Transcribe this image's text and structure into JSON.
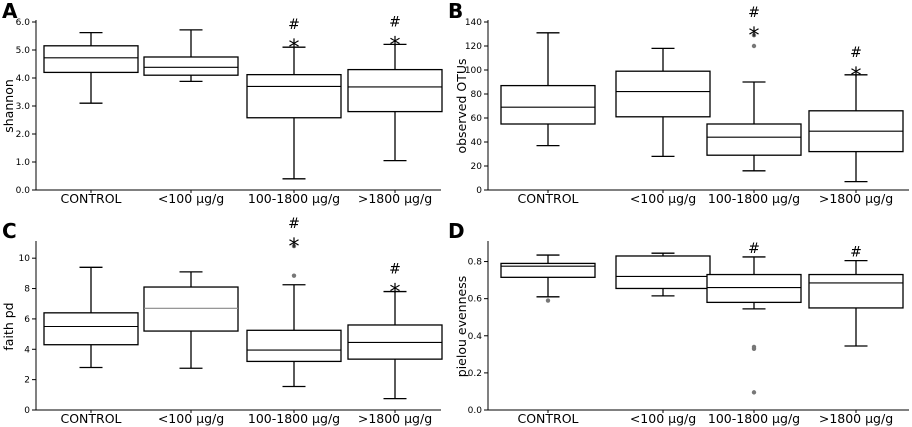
{
  "chart_data": [
    {
      "panel": "A",
      "type": "box",
      "ylabel": "shannon",
      "ylim": [
        0,
        6
      ],
      "yticks": [
        "0.0",
        "1.0",
        "2.0",
        "3.0",
        "4.0",
        "5.0",
        "6.0"
      ],
      "categories": [
        "CONTROL",
        "<100 µg/g",
        "100-1800 µg/g",
        ">1800 µg/g"
      ],
      "boxes": [
        {
          "min": 3.1,
          "q1": 4.2,
          "median": 4.72,
          "q3": 5.15,
          "max": 5.62,
          "outliers": [],
          "median_color": "#000000",
          "marks": [
            "",
            ""
          ]
        },
        {
          "min": 3.88,
          "q1": 4.1,
          "median": 4.38,
          "q3": 4.75,
          "max": 5.72,
          "outliers": [],
          "median_color": "#000000",
          "marks": [
            "",
            ""
          ]
        },
        {
          "min": 0.4,
          "q1": 2.58,
          "median": 3.7,
          "q3": 4.12,
          "max": 5.1,
          "outliers": [],
          "median_color": "#000000",
          "marks": [
            "#",
            "*"
          ]
        },
        {
          "min": 1.05,
          "q1": 2.8,
          "median": 3.68,
          "q3": 4.3,
          "max": 5.2,
          "outliers": [],
          "median_color": "#000000",
          "marks": [
            "#",
            "*"
          ]
        }
      ]
    },
    {
      "panel": "B",
      "type": "box",
      "ylabel": "observed OTUs",
      "ylim": [
        0,
        140
      ],
      "yticks": [
        "0",
        "20",
        "40",
        "60",
        "80",
        "100",
        "120",
        "140"
      ],
      "categories": [
        "CONTROL",
        "<100 µg/g",
        "100-1800 µg/g",
        ">1800 µg/g"
      ],
      "boxes": [
        {
          "min": 37,
          "q1": 55,
          "median": 69,
          "q3": 87,
          "max": 131,
          "outliers": [],
          "median_color": "#000000",
          "marks": [
            "",
            ""
          ]
        },
        {
          "min": 28,
          "q1": 61,
          "median": 82,
          "q3": 99,
          "max": 118,
          "outliers": [],
          "median_color": "#000000",
          "marks": [
            "",
            ""
          ]
        },
        {
          "min": 16,
          "q1": 29,
          "median": 44,
          "q3": 55,
          "max": 90,
          "outliers": [
            120,
            129
          ],
          "median_color": "#000000",
          "marks": [
            "#",
            "*"
          ]
        },
        {
          "min": 7,
          "q1": 32,
          "median": 49,
          "q3": 66,
          "max": 96,
          "outliers": [],
          "median_color": "#000000",
          "marks": [
            "#",
            "*"
          ]
        }
      ]
    },
    {
      "panel": "C",
      "type": "box",
      "ylabel": "faith pd",
      "ylim": [
        0,
        11
      ],
      "yticks": [
        "0",
        "2",
        "4",
        "6",
        "8",
        "10"
      ],
      "yticks_values": [
        0,
        2,
        4,
        6,
        8,
        10
      ],
      "categories": [
        "CONTROL",
        "<100 µg/g",
        "100-1800 µg/g",
        ">1800 µg/g"
      ],
      "boxes": [
        {
          "min": 2.8,
          "q1": 4.3,
          "median": 5.5,
          "q3": 6.4,
          "max": 9.4,
          "outliers": [],
          "median_color": "#000000",
          "marks": [
            "",
            ""
          ]
        },
        {
          "min": 2.75,
          "q1": 5.2,
          "median": 6.7,
          "q3": 8.1,
          "max": 9.1,
          "outliers": [],
          "median_color": "#888888",
          "marks": [
            "",
            ""
          ]
        },
        {
          "min": 1.55,
          "q1": 3.2,
          "median": 3.95,
          "q3": 5.25,
          "max": 8.25,
          "outliers": [
            8.85,
            10.8
          ],
          "median_color": "#000000",
          "marks": [
            "#",
            "*"
          ]
        },
        {
          "min": 0.75,
          "q1": 3.35,
          "median": 4.45,
          "q3": 5.6,
          "max": 7.8,
          "outliers": [],
          "median_color": "#000000",
          "marks": [
            "#",
            "*"
          ]
        }
      ]
    },
    {
      "panel": "D",
      "type": "box",
      "ylabel": "pielou evenness",
      "ylim": [
        0,
        0.9
      ],
      "yticks": [
        "0.0",
        "0.2",
        "0.4",
        "0.6",
        "0.8"
      ],
      "yticks_values": [
        0,
        0.2,
        0.4,
        0.6,
        0.8
      ],
      "categories": [
        "CONTROL",
        "<100 µg/g",
        "100-1800 µg/g",
        ">1800 µg/g"
      ],
      "boxes": [
        {
          "min": 0.61,
          "q1": 0.715,
          "median": 0.775,
          "q3": 0.79,
          "max": 0.835,
          "outliers": [
            0.59
          ],
          "median_color": "#000000",
          "marks": [
            "",
            ""
          ]
        },
        {
          "min": 0.615,
          "q1": 0.655,
          "median": 0.72,
          "q3": 0.83,
          "max": 0.845,
          "outliers": [],
          "median_color": "#000000",
          "marks": [
            "",
            ""
          ]
        },
        {
          "min": 0.545,
          "q1": 0.58,
          "median": 0.66,
          "q3": 0.73,
          "max": 0.825,
          "outliers": [
            0.34,
            0.33,
            0.095
          ],
          "median_color": "#000000",
          "marks": [
            "#",
            ""
          ]
        },
        {
          "min": 0.345,
          "q1": 0.55,
          "median": 0.685,
          "q3": 0.73,
          "max": 0.805,
          "outliers": [],
          "median_color": "#000000",
          "marks": [
            "#",
            ""
          ]
        }
      ]
    }
  ]
}
